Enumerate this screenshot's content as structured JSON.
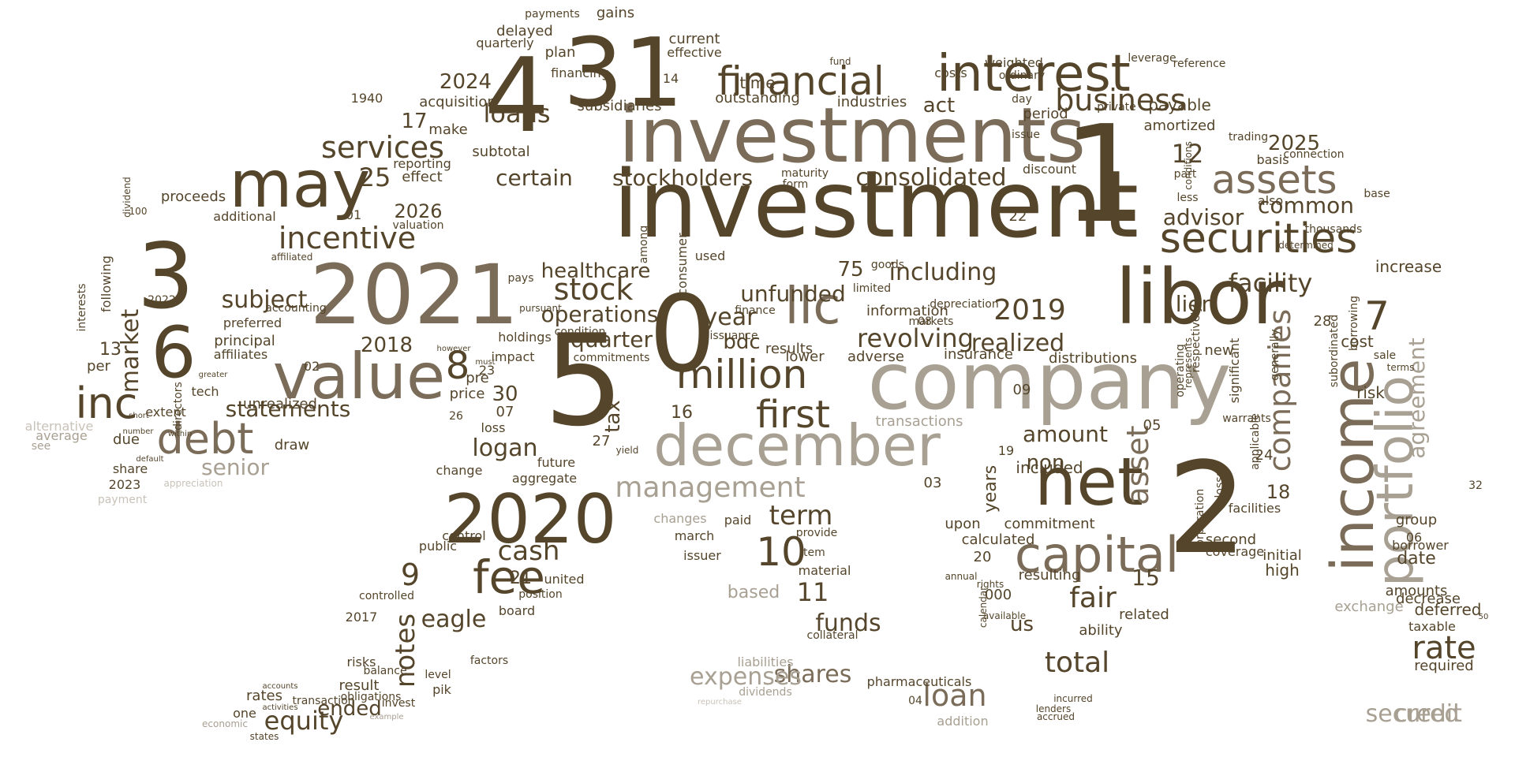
{
  "colors": {
    "background": "#ffffff",
    "dark": "#54452b",
    "mid": "#7a6c58",
    "light": "#a8a092",
    "faint": "#c8c2b8"
  },
  "words": [
    "investment",
    "investments",
    "company",
    "libor",
    "december",
    "2021",
    "2020",
    "income",
    "portfolio",
    "net",
    "capital",
    "value",
    "may",
    "interest",
    "financial",
    "securities",
    "million",
    "first",
    "llc",
    "assets",
    "debt",
    "inc",
    "fee",
    "revolving",
    "consolidated",
    "certain",
    "stockholders",
    "services",
    "incentive",
    "stock",
    "operations",
    "management",
    "loans",
    "business",
    "companies",
    "including",
    "realized",
    "total",
    "loan",
    "fair",
    "asset",
    "unfunded",
    "healthcare",
    "subject",
    "statements",
    "market",
    "notes",
    "cash",
    "term",
    "year",
    "bdc",
    "quarter",
    "facility",
    "agreement",
    "common",
    "advisor",
    "lien",
    "rate",
    "credit",
    "secured",
    "senior",
    "equity",
    "shares",
    "funds",
    "expenses",
    "amount",
    "non",
    "us",
    "eagle",
    "ended",
    "logan",
    "tax",
    "advisor",
    "information",
    "included",
    "distributions",
    "act",
    "outstanding",
    "amortized",
    "payable",
    "date",
    "amounts",
    "deferred",
    "required",
    "exchange",
    "increase",
    "risk",
    "cost",
    "new",
    "results",
    "insurance",
    "lower",
    "adverse",
    "transactions",
    "commitment",
    "calculated",
    "resulting",
    "related",
    "ability",
    "upon",
    "second",
    "coverage",
    "facilities",
    "high",
    "initial",
    "group",
    "borrower",
    "decrease",
    "taxable",
    "industries",
    "acquisition",
    "subsidiaries",
    "plan",
    "current",
    "effective",
    "financing",
    "delayed",
    "quarterly",
    "gains",
    "payments",
    "subtotal",
    "make",
    "effect",
    "reporting",
    "additional",
    "valuation",
    "proceeds",
    "dividend",
    "affiliated",
    "accounting",
    "preferred",
    "principal",
    "affiliates",
    "unrealized",
    "draw",
    "due",
    "extent",
    "directors",
    "following",
    "interests",
    "per",
    "tech",
    "share",
    "alternative",
    "average",
    "see",
    "payment",
    "appreciation",
    "control",
    "public",
    "change",
    "loss",
    "aggregate",
    "future",
    "impact",
    "price",
    "holdings",
    "pre",
    "yield",
    "commitments",
    "board",
    "united",
    "position",
    "factors",
    "level",
    "risks",
    "balance",
    "result",
    "controlled",
    "pik",
    "obligations",
    "rates",
    "transaction",
    "one",
    "invest",
    "economic",
    "states",
    "example",
    "accounts",
    "activities",
    "issuer",
    "march",
    "paid",
    "changes",
    "based",
    "material",
    "provide",
    "item",
    "collateral",
    "liabilities",
    "dividends",
    "repurchase",
    "pharmaceuticals",
    "addition",
    "accrued",
    "lenders",
    "incurred",
    "rights",
    "available",
    "annual",
    "calendar",
    "years",
    "significant",
    "applicable",
    "respectively",
    "represents",
    "operating",
    "corporation",
    "losses",
    "warrants",
    "generally",
    "subordinated",
    "borrowing",
    "sale",
    "terms",
    "thousands",
    "determined",
    "base",
    "also",
    "connection",
    "trading",
    "conditions",
    "part",
    "less",
    "basis",
    "private",
    "period",
    "day",
    "issue",
    "discount",
    "weighted",
    "ordinary",
    "leverage",
    "reference",
    "costs",
    "fund",
    "time",
    "maturity",
    "form",
    "consumer",
    "among",
    "used",
    "unfunded",
    "depreciation",
    "limited",
    "goods",
    "markets",
    "issuance",
    "finance",
    "pays",
    "condition",
    "pursuant",
    "holdings",
    "however",
    "must",
    "within",
    "number",
    "default",
    "short",
    "greater"
  ]
}
